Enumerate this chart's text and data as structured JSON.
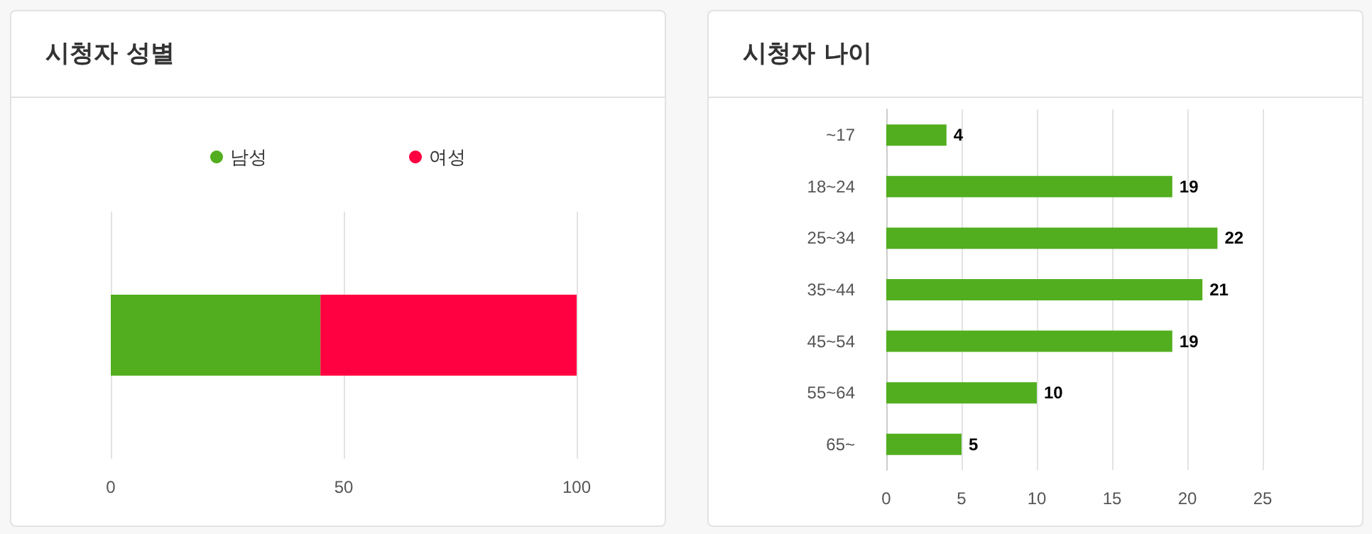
{
  "chart_data": [
    {
      "type": "bar",
      "title": "시청자 성별",
      "categories": [
        null
      ],
      "series": [
        {
          "name": "남성",
          "color": "#52ae1f",
          "values": [
            45
          ]
        },
        {
          "name": "여성",
          "color": "#ff0040",
          "values": [
            55
          ]
        }
      ],
      "stacked": true,
      "orientation": "horizontal",
      "xlim": [
        0,
        100
      ],
      "xticks": [
        0,
        50,
        100
      ],
      "grid": "x",
      "legend": "top"
    },
    {
      "type": "bar",
      "title": "시청자 나이",
      "categories": [
        "~17",
        "18~24",
        "25~34",
        "35~44",
        "45~54",
        "55~64",
        "65~"
      ],
      "values": [
        4,
        19,
        22,
        21,
        19,
        10,
        5
      ],
      "color": "#52ae1f",
      "orientation": "horizontal",
      "xlim": [
        0,
        25
      ],
      "xticks": [
        0,
        5,
        10,
        15,
        20,
        25
      ],
      "grid": "x",
      "data_labels": true
    }
  ]
}
